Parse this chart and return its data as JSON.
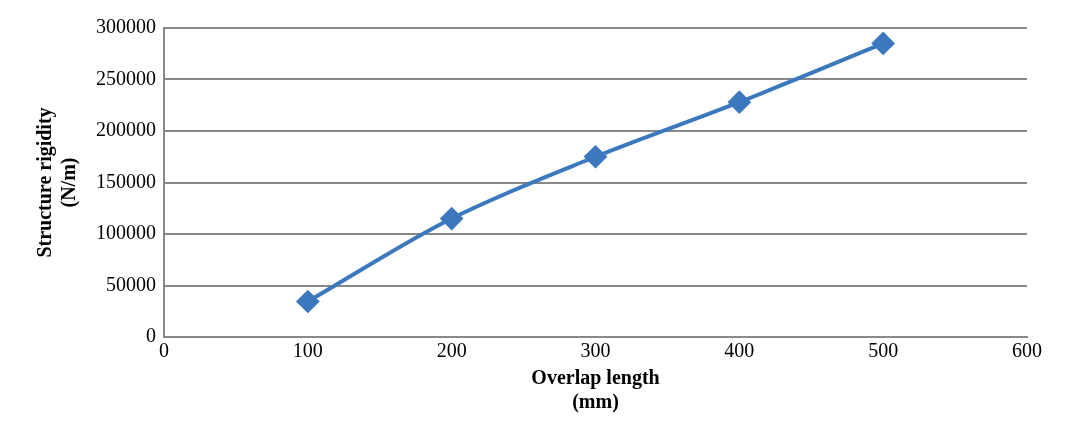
{
  "chart_data": {
    "type": "line",
    "xlabel": "Overlap length\n(mm)",
    "ylabel": "Structure rigidity\n(N/m)",
    "x": [
      100,
      200,
      300,
      400,
      500
    ],
    "series": [
      {
        "color": "#3c78be",
        "values": [
          34500,
          115000,
          175000,
          228000,
          285000
        ]
      }
    ],
    "xlim": [
      0,
      600
    ],
    "xticks": [
      0,
      100,
      200,
      300,
      400,
      500,
      600
    ],
    "ylim": [
      0,
      300000
    ],
    "yticks": [
      0,
      50000,
      100000,
      150000,
      200000,
      250000,
      300000
    ],
    "grid": "y",
    "legend": false,
    "marker": "diamond",
    "line_style": "solid"
  }
}
